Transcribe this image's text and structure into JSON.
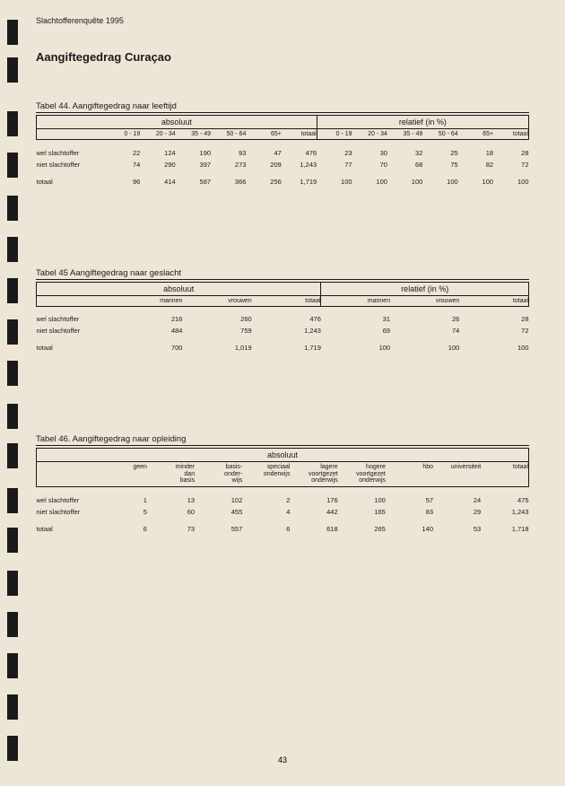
{
  "doc_header": "Slachtofferenquête 1995",
  "page_title": "Aangiftegedrag Curaçao",
  "page_number": "43",
  "binding_mark_positions": [
    22,
    64,
    124,
    170,
    218,
    264,
    310,
    356,
    402,
    450,
    494,
    544,
    588,
    636,
    682,
    728,
    774,
    820
  ],
  "table44": {
    "caption": "Tabel 44. Aangiftegedrag naar leeftijd",
    "section_abs": "absoluut",
    "section_rel": "relatief (in %)",
    "age_cols": [
      "0 - 19",
      "20 - 34",
      "35 - 49",
      "50 - 64",
      "65+",
      "totaal"
    ],
    "rows": [
      {
        "label": "wel slachtoffer",
        "abs": [
          "22",
          "124",
          "190",
          "93",
          "47",
          "476"
        ],
        "rel": [
          "23",
          "30",
          "32",
          "25",
          "18",
          "28"
        ]
      },
      {
        "label": "niet slachtoffer",
        "abs": [
          "74",
          "290",
          "397",
          "273",
          "209",
          "1,243"
        ],
        "rel": [
          "77",
          "70",
          "68",
          "75",
          "82",
          "72"
        ]
      }
    ],
    "total": {
      "label": "totaal",
      "abs": [
        "96",
        "414",
        "587",
        "366",
        "256",
        "1,719"
      ],
      "rel": [
        "100",
        "100",
        "100",
        "100",
        "100",
        "100"
      ]
    }
  },
  "table45": {
    "caption": "Tabel 45 Aangiftegedrag naar geslacht",
    "section_abs": "absoluut",
    "section_rel": "relatief (in %)",
    "cols": [
      "mannen",
      "vrouwen",
      "totaal"
    ],
    "rows": [
      {
        "label": "wel slachtoffer",
        "abs": [
          "216",
          "260",
          "476"
        ],
        "rel": [
          "31",
          "26",
          "28"
        ]
      },
      {
        "label": "niet slachtoffer",
        "abs": [
          "484",
          "759",
          "1,243"
        ],
        "rel": [
          "69",
          "74",
          "72"
        ]
      }
    ],
    "total": {
      "label": "totaal",
      "abs": [
        "700",
        "1,019",
        "1,719"
      ],
      "rel": [
        "100",
        "100",
        "100"
      ]
    }
  },
  "table46": {
    "caption": "Tabel 46. Aangiftegedrag naar opleiding",
    "section_abs": "absoluut",
    "cols": [
      "geen",
      "minder\ndan\nbasis",
      "basis-\nonder-\nwijs",
      "speciaal\nonderwijs",
      "lagere\nvoortgezet\nonderwijs",
      "hogere\nvoortgezet\nonderwijs",
      "hbo",
      "universiteit",
      "totaal"
    ],
    "rows": [
      {
        "label": "wel slachtoffer",
        "vals": [
          "1",
          "13",
          "102",
          "2",
          "176",
          "100",
          "57",
          "24",
          "475"
        ]
      },
      {
        "label": "niet slachtoffer",
        "vals": [
          "5",
          "60",
          "455",
          "4",
          "442",
          "165",
          "83",
          "29",
          "1,243"
        ]
      }
    ],
    "total": {
      "label": "totaal",
      "vals": [
        "6",
        "73",
        "557",
        "6",
        "618",
        "265",
        "140",
        "53",
        "1,718"
      ]
    }
  }
}
